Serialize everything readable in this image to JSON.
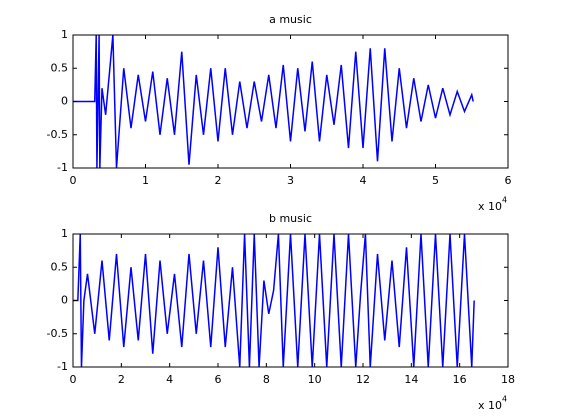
{
  "chart_data": [
    {
      "type": "line",
      "title": "a music",
      "x": [
        0,
        0.3,
        0.32,
        0.33,
        0.36,
        0.37,
        0.4,
        0.45,
        0.55,
        0.6,
        0.7,
        0.8,
        0.9,
        1.0,
        1.1,
        1.2,
        1.3,
        1.4,
        1.5,
        1.6,
        1.7,
        1.8,
        1.9,
        2.0,
        2.1,
        2.2,
        2.3,
        2.4,
        2.5,
        2.6,
        2.7,
        2.8,
        2.9,
        3.0,
        3.1,
        3.2,
        3.3,
        3.4,
        3.5,
        3.6,
        3.7,
        3.8,
        3.9,
        4.0,
        4.1,
        4.2,
        4.3,
        4.4,
        4.5,
        4.6,
        4.7,
        4.8,
        4.9,
        5.0,
        5.1,
        5.2,
        5.3,
        5.4,
        5.5,
        5.52
      ],
      "series": [
        {
          "color": "#0000ff",
          "values": [
            0,
            0,
            1,
            -1,
            1,
            -1,
            0.2,
            -0.2,
            1,
            -1,
            0.5,
            -0.4,
            0.4,
            -0.3,
            0.45,
            -0.5,
            0.35,
            -0.5,
            0.75,
            -0.95,
            0.4,
            -0.5,
            0.5,
            -0.6,
            0.5,
            -0.5,
            0.3,
            -0.4,
            0.3,
            -0.3,
            0.4,
            -0.4,
            0.55,
            -0.6,
            0.5,
            -0.45,
            0.6,
            -0.6,
            0.4,
            -0.35,
            0.55,
            -0.7,
            0.75,
            -0.7,
            0.8,
            -0.9,
            0.8,
            -0.6,
            0.5,
            -0.4,
            0.35,
            -0.3,
            0.25,
            -0.25,
            0.2,
            -0.2,
            0.15,
            -0.15,
            0.1,
            0
          ]
        }
      ],
      "xlim": [
        0,
        6
      ],
      "ylim": [
        -1,
        1
      ],
      "xticks": [
        0,
        1,
        2,
        3,
        4,
        5,
        6
      ],
      "yticks": [
        -1,
        -0.5,
        0,
        0.5,
        1
      ],
      "x_multiplier": "x 10",
      "x_multiplier_exponent": "4"
    },
    {
      "type": "line",
      "title": "b music",
      "x": [
        0,
        0.2,
        0.3,
        0.35,
        0.45,
        0.6,
        0.9,
        1.2,
        1.5,
        1.8,
        2.1,
        2.4,
        2.7,
        3.0,
        3.3,
        3.6,
        3.9,
        4.2,
        4.5,
        4.8,
        5.1,
        5.4,
        5.7,
        6.0,
        6.3,
        6.6,
        6.9,
        7.1,
        7.3,
        7.5,
        7.7,
        7.9,
        8.1,
        8.3,
        8.5,
        8.7,
        9.0,
        9.3,
        9.6,
        9.9,
        10.2,
        10.5,
        10.8,
        11.1,
        11.4,
        11.7,
        11.9,
        12.1,
        12.3,
        12.6,
        12.9,
        13.2,
        13.5,
        13.8,
        14.1,
        14.4,
        14.7,
        15.0,
        15.3,
        15.6,
        15.9,
        16.2,
        16.5,
        16.6
      ],
      "series": [
        {
          "color": "#0000ff",
          "values": [
            0,
            0,
            1,
            -1,
            0,
            0.4,
            -0.5,
            0.6,
            -0.6,
            0.7,
            -0.7,
            0.5,
            -0.6,
            0.7,
            -0.8,
            0.6,
            -0.5,
            0.4,
            -0.7,
            0.7,
            -0.5,
            0.6,
            -0.7,
            0.8,
            -0.7,
            0.5,
            -1,
            1,
            -1,
            1,
            -1,
            0.3,
            -0.2,
            0.15,
            1,
            -1,
            1,
            -1,
            1,
            -1,
            1,
            -1,
            1,
            -1,
            1,
            -1,
            0.1,
            1,
            -1,
            0.7,
            -0.6,
            0.6,
            -0.7,
            0.8,
            -1,
            1,
            -1,
            1,
            -1,
            1,
            -1,
            1,
            -1,
            0
          ]
        }
      ],
      "xlim": [
        0,
        18
      ],
      "ylim": [
        -1,
        1
      ],
      "xticks": [
        0,
        2,
        4,
        6,
        8,
        10,
        12,
        14,
        16,
        18
      ],
      "yticks": [
        -1,
        -0.5,
        0,
        0.5,
        1
      ],
      "x_multiplier": "x 10",
      "x_multiplier_exponent": "4"
    }
  ]
}
